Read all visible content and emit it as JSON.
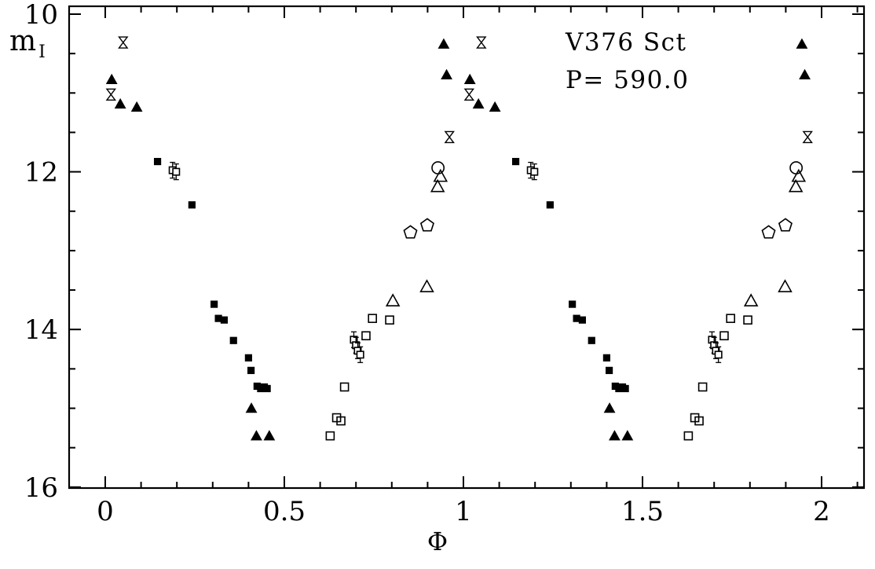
{
  "chart_data": {
    "type": "scatter",
    "title": "V376 Sct",
    "subtitle": "P= 590.0",
    "xlabel": "Φ",
    "ylabel": "m_I",
    "ylabel_display": {
      "main": "m",
      "sub": "I"
    },
    "x_axis": {
      "min": -0.1,
      "max": 2.12,
      "major_ticks": [
        0,
        0.5,
        1,
        1.5,
        2
      ],
      "major_tick_labels": [
        "0",
        "0.5",
        "1",
        "1.5",
        "2"
      ],
      "minor_tick_step": 0.1
    },
    "y_axis": {
      "min": 9.9,
      "max": 16.05,
      "inverted": true,
      "major_ticks": [
        10,
        12,
        14,
        16
      ],
      "major_tick_labels": [
        "10",
        "12",
        "14",
        "16"
      ],
      "minor_tick_step": 0.5
    },
    "grid": false,
    "legend": false,
    "phase_fold_duplicated": true,
    "phase_offsets": [
      0,
      1
    ],
    "colors": {
      "foreground": "#000000",
      "background": "#ffffff"
    },
    "series": [
      {
        "name": "filled-triangle",
        "marker": "filled-triangle",
        "points": [
          [
            0.018,
            10.83
          ],
          [
            0.042,
            11.14
          ],
          [
            0.088,
            11.18
          ],
          [
            0.408,
            15.0
          ],
          [
            0.422,
            15.35
          ],
          [
            0.458,
            15.35
          ],
          [
            0.945,
            10.38
          ],
          [
            0.953,
            10.77
          ]
        ]
      },
      {
        "name": "filled-square",
        "marker": "filled-square",
        "points": [
          [
            0.146,
            11.87
          ],
          [
            0.242,
            12.42
          ],
          [
            0.304,
            13.68
          ],
          [
            0.316,
            13.86
          ],
          [
            0.332,
            13.88
          ],
          [
            0.358,
            14.14
          ],
          [
            0.4,
            14.36
          ],
          [
            0.407,
            14.52
          ],
          [
            0.424,
            14.72
          ],
          [
            0.434,
            14.75
          ],
          [
            0.444,
            14.73
          ],
          [
            0.452,
            14.75
          ]
        ]
      },
      {
        "name": "open-square",
        "marker": "open-square",
        "points": [
          [
            0.628,
            15.35
          ],
          [
            0.646,
            15.12
          ],
          [
            0.658,
            15.16
          ],
          [
            0.668,
            14.73
          ],
          [
            0.728,
            14.08
          ],
          [
            0.746,
            13.86
          ],
          [
            0.794,
            13.88
          ]
        ]
      },
      {
        "name": "open-square-errorbar",
        "marker": "open-square-errorbar",
        "points": [
          [
            0.188,
            11.98
          ],
          [
            0.198,
            12.0
          ],
          [
            0.694,
            14.13
          ],
          [
            0.7,
            14.2
          ],
          [
            0.705,
            14.27
          ],
          [
            0.712,
            14.32
          ]
        ]
      },
      {
        "name": "open-triangle",
        "marker": "open-triangle",
        "points": [
          [
            0.803,
            13.64
          ],
          [
            0.898,
            13.46
          ],
          [
            0.928,
            12.19
          ],
          [
            0.936,
            12.06
          ]
        ]
      },
      {
        "name": "open-circle",
        "marker": "open-circle",
        "points": [
          [
            0.929,
            11.95
          ]
        ]
      },
      {
        "name": "open-pentagon",
        "marker": "open-pentagon",
        "points": [
          [
            0.852,
            12.77
          ],
          [
            0.899,
            12.68
          ]
        ]
      },
      {
        "name": "hourglass-star",
        "marker": "hourglass",
        "points": [
          [
            0.016,
            11.02
          ],
          [
            0.05,
            10.36
          ],
          [
            0.961,
            11.56
          ]
        ]
      }
    ]
  }
}
